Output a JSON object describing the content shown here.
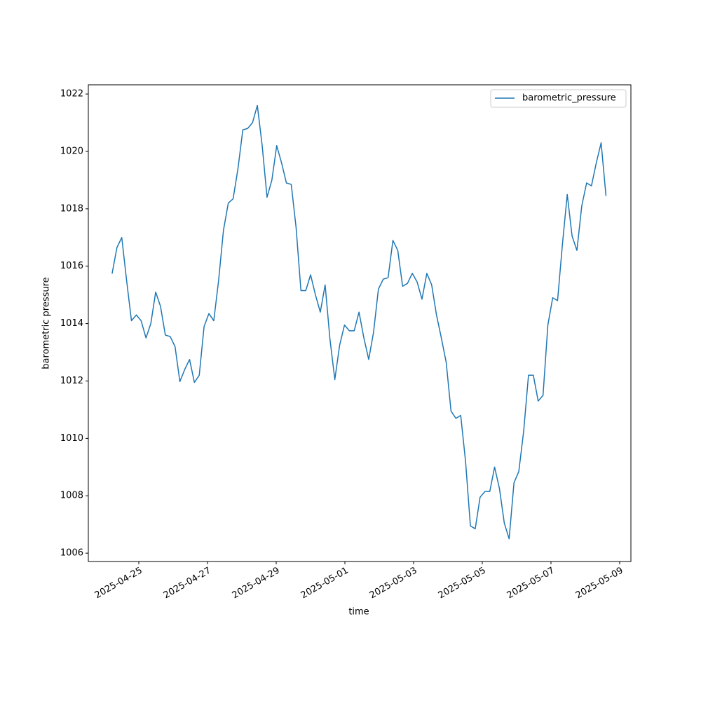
{
  "chart_data": {
    "type": "line",
    "x_label": "time",
    "y_label": "barometric pressure",
    "x": [
      "2025-04-24T05:20",
      "2025-04-24T08:43",
      "2025-04-24T12:06",
      "2025-04-24T15:29",
      "2025-04-24T18:52",
      "2025-04-24T22:15",
      "2025-04-25T01:38",
      "2025-04-25T05:01",
      "2025-04-25T08:24",
      "2025-04-25T11:47",
      "2025-04-25T15:10",
      "2025-04-25T18:33",
      "2025-04-25T21:56",
      "2025-04-26T01:19",
      "2025-04-26T04:42",
      "2025-04-26T08:05",
      "2025-04-26T11:28",
      "2025-04-26T14:51",
      "2025-04-26T18:14",
      "2025-04-26T21:37",
      "2025-04-27T01:00",
      "2025-04-27T04:23",
      "2025-04-27T07:46",
      "2025-04-27T11:09",
      "2025-04-27T14:32",
      "2025-04-27T17:55",
      "2025-04-27T21:18",
      "2025-04-28T00:41",
      "2025-04-28T04:04",
      "2025-04-28T07:27",
      "2025-04-28T10:50",
      "2025-04-28T14:13",
      "2025-04-28T17:36",
      "2025-04-28T20:59",
      "2025-04-29T00:22",
      "2025-04-29T03:45",
      "2025-04-29T07:08",
      "2025-04-29T10:31",
      "2025-04-29T13:54",
      "2025-04-29T17:17",
      "2025-04-29T20:40",
      "2025-04-30T00:03",
      "2025-04-30T03:26",
      "2025-04-30T06:49",
      "2025-04-30T10:12",
      "2025-04-30T13:35",
      "2025-04-30T16:58",
      "2025-04-30T20:21",
      "2025-04-30T23:44",
      "2025-05-01T03:07",
      "2025-05-01T06:30",
      "2025-05-01T09:53",
      "2025-05-01T13:16",
      "2025-05-01T16:39",
      "2025-05-01T20:02",
      "2025-05-01T23:25",
      "2025-05-02T02:48",
      "2025-05-02T06:11",
      "2025-05-02T09:34",
      "2025-05-02T12:57",
      "2025-05-02T16:20",
      "2025-05-02T19:43",
      "2025-05-02T23:06",
      "2025-05-03T02:29",
      "2025-05-03T05:52",
      "2025-05-03T09:15",
      "2025-05-03T12:38",
      "2025-05-03T16:01",
      "2025-05-03T19:24",
      "2025-05-03T22:47",
      "2025-05-04T02:10",
      "2025-05-04T05:33",
      "2025-05-04T08:56",
      "2025-05-04T12:19",
      "2025-05-04T15:42",
      "2025-05-04T19:05",
      "2025-05-04T22:28",
      "2025-05-05T01:51",
      "2025-05-05T05:14",
      "2025-05-05T08:37",
      "2025-05-05T12:00",
      "2025-05-05T15:23",
      "2025-05-05T18:46",
      "2025-05-05T22:09",
      "2025-05-06T01:32",
      "2025-05-06T04:55",
      "2025-05-06T08:18",
      "2025-05-06T11:41",
      "2025-05-06T15:04",
      "2025-05-06T18:27",
      "2025-05-06T21:50",
      "2025-05-07T01:13",
      "2025-05-07T04:36",
      "2025-05-07T07:59",
      "2025-05-07T11:22",
      "2025-05-07T14:45",
      "2025-05-07T18:08",
      "2025-05-07T21:31",
      "2025-05-08T00:54",
      "2025-05-08T04:17",
      "2025-05-08T07:40",
      "2025-05-08T11:03",
      "2025-05-08T14:26"
    ],
    "series": [
      {
        "name": "barometric_pressure",
        "color": "#1f77b4",
        "values": [
          1015.74,
          1016.65,
          1017.0,
          1015.5,
          1014.1,
          1014.3,
          1014.1,
          1013.5,
          1014.0,
          1015.1,
          1014.6,
          1013.6,
          1013.55,
          1013.2,
          1011.98,
          1012.4,
          1012.75,
          1011.95,
          1012.2,
          1013.9,
          1014.35,
          1014.1,
          1015.5,
          1017.25,
          1018.2,
          1018.35,
          1019.4,
          1020.75,
          1020.8,
          1021.0,
          1021.6,
          1020.2,
          1018.4,
          1019.0,
          1020.2,
          1019.6,
          1018.9,
          1018.85,
          1017.35,
          1015.15,
          1015.15,
          1015.7,
          1015.0,
          1014.4,
          1015.35,
          1013.45,
          1012.05,
          1013.25,
          1013.95,
          1013.75,
          1013.75,
          1014.4,
          1013.5,
          1012.75,
          1013.7,
          1015.2,
          1015.55,
          1015.6,
          1016.9,
          1016.55,
          1015.3,
          1015.4,
          1015.75,
          1015.45,
          1014.85,
          1015.75,
          1015.35,
          1014.3,
          1013.5,
          1012.65,
          1010.95,
          1010.7,
          1010.8,
          1009.2,
          1006.95,
          1006.85,
          1007.95,
          1008.15,
          1008.15,
          1009.0,
          1008.25,
          1007.05,
          1006.5,
          1008.45,
          1008.85,
          1010.25,
          1012.2,
          1012.2,
          1011.3,
          1011.5,
          1013.95,
          1014.9,
          1014.8,
          1016.75,
          1018.5,
          1017.05,
          1016.55,
          1018.1,
          1018.9,
          1018.8,
          1019.6,
          1020.3,
          1018.45
        ]
      }
    ],
    "xlim": [
      "2025-04-23T12:44",
      "2025-05-09T07:51"
    ],
    "xticks": [
      "2025-04-25",
      "2025-04-27",
      "2025-04-29",
      "2025-05-01",
      "2025-05-03",
      "2025-05-05",
      "2025-05-07",
      "2025-05-09"
    ],
    "ylim": [
      1005.71,
      1022.32
    ],
    "yticks": [
      1006,
      1008,
      1010,
      1012,
      1014,
      1016,
      1018,
      1020,
      1022
    ],
    "legend": "upper right"
  }
}
